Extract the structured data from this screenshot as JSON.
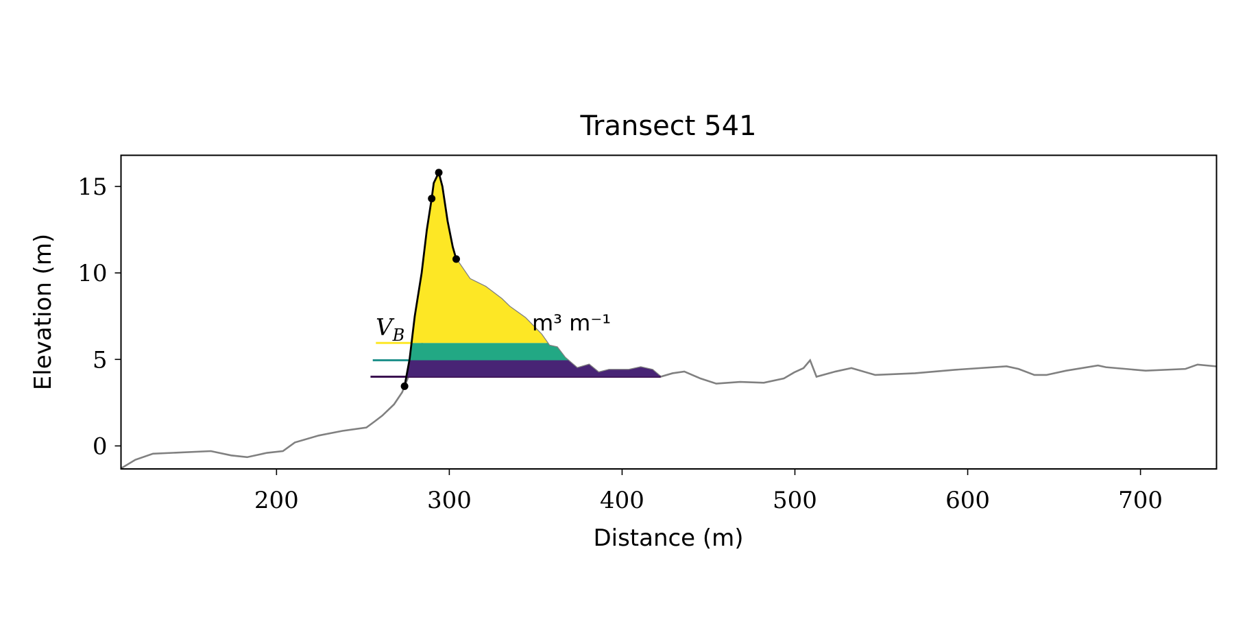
{
  "chart_data": {
    "type": "line",
    "title": "Transect 541",
    "xlabel": "Distance (m)",
    "ylabel": "Elevation (m)",
    "annotation_main": "V",
    "annotation_sub": "B",
    "annotation_unit": "m³ m⁻¹",
    "xlim": [
      110,
      744
    ],
    "ylim": [
      -1.33,
      16.8
    ],
    "xticks": [
      200,
      300,
      400,
      500,
      600,
      700
    ],
    "yticks": [
      0,
      5,
      10,
      15
    ],
    "series": [
      {
        "name": "profile",
        "color": "#808080",
        "x": [
          110,
          118.3,
          128.5,
          162,
          173.8,
          183,
          194.5,
          203.7,
          210.6,
          224.4,
          238.2,
          252,
          256.6,
          261.2,
          268,
          272.7,
          274.1,
          304,
          311.9,
          321,
          330.3,
          334.9,
          344,
          353.3,
          357.9,
          362.4,
          367,
          374,
          380.9,
          386.4,
          392.4,
          403.9,
          410.8,
          417.6,
          422.3,
          429.2,
          436,
          445.3,
          454.5,
          468.3,
          482,
          493.6,
          499.6,
          505,
          508.8,
          512.5,
          523.5,
          532.7,
          546.5,
          569.5,
          592.5,
          622.5,
          629.4,
          638.6,
          645.5,
          657,
          675.4,
          680,
          703,
          726,
          733,
          743.7
        ],
        "values": [
          -1.3,
          -0.8,
          -0.45,
          -0.3,
          -0.55,
          -0.65,
          -0.4,
          -0.3,
          0.2,
          0.6,
          0.87,
          1.06,
          1.4,
          1.75,
          2.4,
          3.1,
          3.45,
          10.8,
          9.65,
          9.2,
          8.5,
          8.05,
          7.4,
          6.45,
          5.8,
          5.7,
          5.1,
          4.5,
          4.7,
          4.25,
          4.4,
          4.4,
          4.55,
          4.4,
          4.0,
          4.2,
          4.3,
          3.9,
          3.6,
          3.7,
          3.65,
          3.9,
          4.25,
          4.5,
          4.95,
          4.0,
          4.3,
          4.5,
          4.1,
          4.2,
          4.4,
          4.6,
          4.45,
          4.1,
          4.1,
          4.35,
          4.65,
          4.55,
          4.35,
          4.45,
          4.7,
          4.6
        ]
      },
      {
        "name": "dune",
        "color": "#000000",
        "x": [
          274.1,
          277,
          280,
          284,
          287,
          289.8,
          291,
          293.9,
          296,
          299,
          302,
          304
        ],
        "values": [
          3.45,
          5,
          7.5,
          10,
          12.5,
          14.3,
          15.2,
          15.8,
          15,
          13,
          11.5,
          10.8
        ]
      }
    ],
    "points": {
      "color": "#000000",
      "x": [
        274.1,
        289.8,
        293.9,
        304
      ],
      "values": [
        3.45,
        14.3,
        15.8,
        10.8
      ]
    },
    "levels": [
      {
        "value": 4.0,
        "color": "#3b0f50",
        "fill": "#482475",
        "xstart": 254.4
      },
      {
        "value": 4.95,
        "color": "#21918c",
        "fill": "#22a884",
        "xstart": 255.7
      },
      {
        "value": 5.95,
        "color": "#fde725",
        "fill": "#fde725",
        "xstart": 257.5
      }
    ]
  }
}
